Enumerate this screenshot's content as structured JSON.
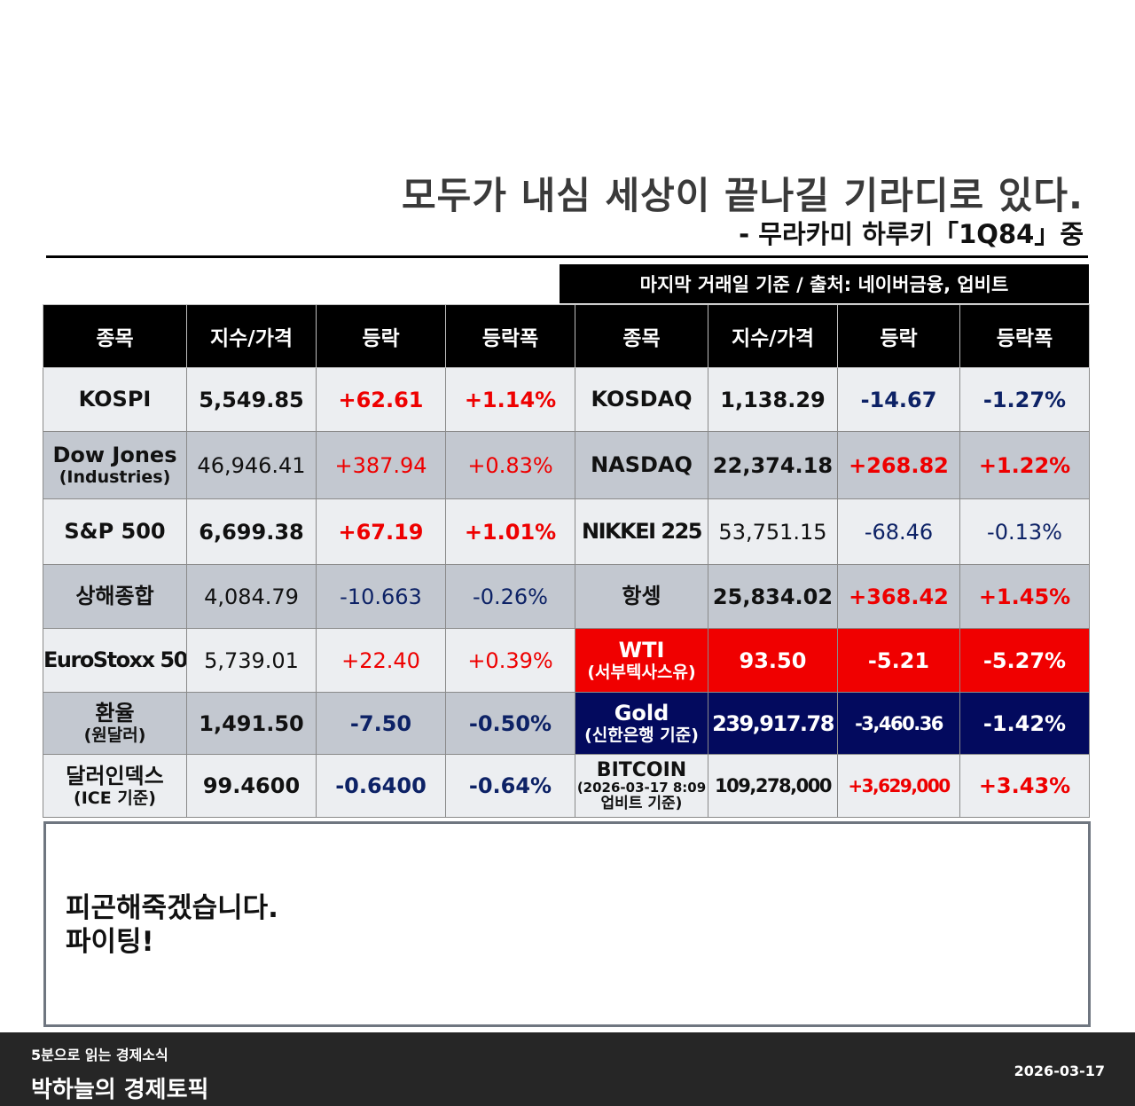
{
  "quote": {
    "text": "모두가 내심 세상이 끝나길 기라디로 있다.",
    "source": "-   무라카미 하루키「1Q84」중"
  },
  "notice": "마지막 거래일 기준 / 출처: 네이버금융, 업비트",
  "table": {
    "headers": [
      "종목",
      "지수/가격",
      "등락",
      "등락폭",
      "종목",
      "지수/가격",
      "등락",
      "등락폭"
    ],
    "rows": [
      {
        "left": {
          "name": "KOSPI",
          "sub": "",
          "price": "5,549.85",
          "change": "+62.61",
          "pct": "+1.14%"
        },
        "right": {
          "name": "KOSDAQ",
          "sub": "",
          "price": "1,138.29",
          "change": "-14.67",
          "pct": "-1.27%"
        }
      },
      {
        "left": {
          "name": "Dow Jones",
          "sub": "(Industries)",
          "price": "46,946.41",
          "change": "+387.94",
          "pct": "+0.83%"
        },
        "right": {
          "name": "NASDAQ",
          "sub": "",
          "price": "22,374.18",
          "change": "+268.82",
          "pct": "+1.22%"
        }
      },
      {
        "left": {
          "name": "S&P 500",
          "sub": "",
          "price": "6,699.38",
          "change": "+67.19",
          "pct": "+1.01%"
        },
        "right": {
          "name": "NIKKEI 225",
          "sub": "",
          "price": "53,751.15",
          "change": "-68.46",
          "pct": "-0.13%"
        }
      },
      {
        "left": {
          "name": "상해종합",
          "sub": "",
          "price": "4,084.79",
          "change": "-10.663",
          "pct": "-0.26%"
        },
        "right": {
          "name": "항셍",
          "sub": "",
          "price": "25,834.02",
          "change": "+368.42",
          "pct": "+1.45%"
        }
      },
      {
        "left": {
          "name": "EuroStoxx 50",
          "sub": "",
          "price": "5,739.01",
          "change": "+22.40",
          "pct": "+0.39%"
        },
        "right": {
          "name": "WTI",
          "sub": "(서부텍사스유)",
          "price": "93.50",
          "change": "-5.21",
          "pct": "-5.27%"
        }
      },
      {
        "left": {
          "name": "환율",
          "sub": "(원달러)",
          "price": "1,491.50",
          "change": "-7.50",
          "pct": "-0.50%"
        },
        "right": {
          "name": "Gold",
          "sub": "(신한은행 기준)",
          "price": "239,917.78",
          "change": "-3,460.36",
          "pct": "-1.42%"
        }
      },
      {
        "left": {
          "name": "달러인덱스",
          "sub": "(ICE 기준)",
          "price": "99.4600",
          "change": "-0.6400",
          "pct": "-0.64%"
        },
        "right": {
          "name": "BITCOIN",
          "sub": "(2026-03-17 8:09",
          "sub2": "업비트 기준)",
          "price": "109,278,000",
          "change": "+3,629,000",
          "pct": "+3.43%"
        }
      }
    ]
  },
  "memo": "피곤해죽겠습니다.\n파이팅!",
  "footer": {
    "subtitle": "5분으로 읽는 경제소식",
    "title": "박하늘의 경제토픽",
    "date": "2026-03-17"
  },
  "colors": {
    "header_bg": "#000000",
    "row_light": "#eceef1",
    "row_gray": "#c3c8d0",
    "up": "#ee0000",
    "down": "#0d2266",
    "wti_bg": "#f00000",
    "gold_bg": "#030a5e",
    "footer_bg": "#262626"
  }
}
